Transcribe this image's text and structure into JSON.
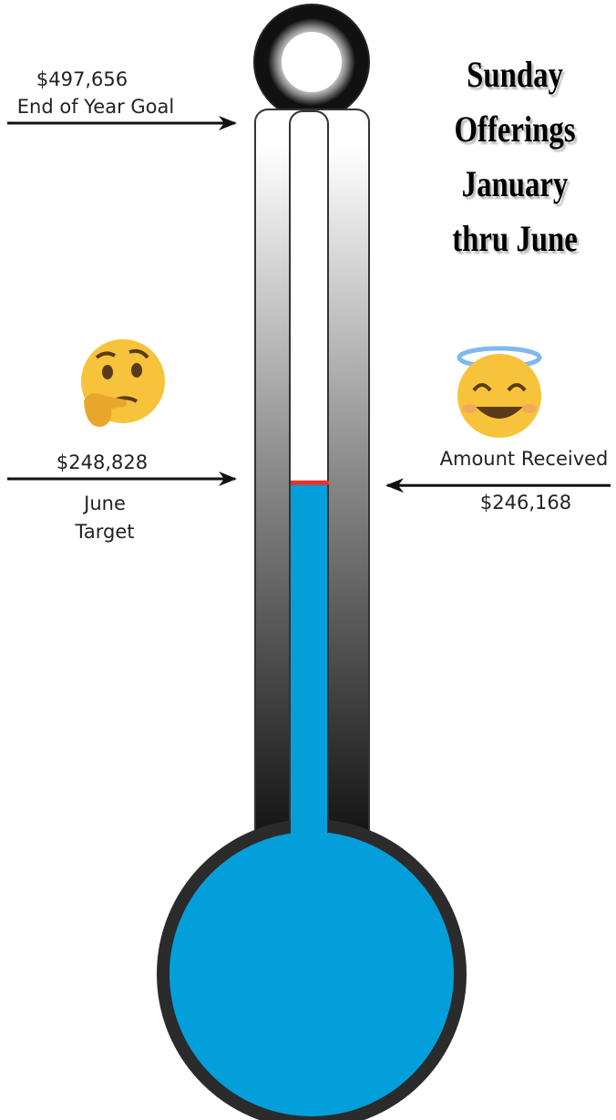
{
  "chart_data": {
    "type": "thermometer",
    "title": "Sunday Offerings January thru June",
    "fill_color": "#039fdb",
    "goal": {
      "label": "End of Year Goal",
      "value": 497656,
      "value_label": "$497,656"
    },
    "target": {
      "label": "June Target",
      "value": 248828,
      "value_label": "$248,828"
    },
    "received": {
      "label": "Amount Received",
      "value": 246168,
      "value_label": "$246,168"
    }
  }
}
